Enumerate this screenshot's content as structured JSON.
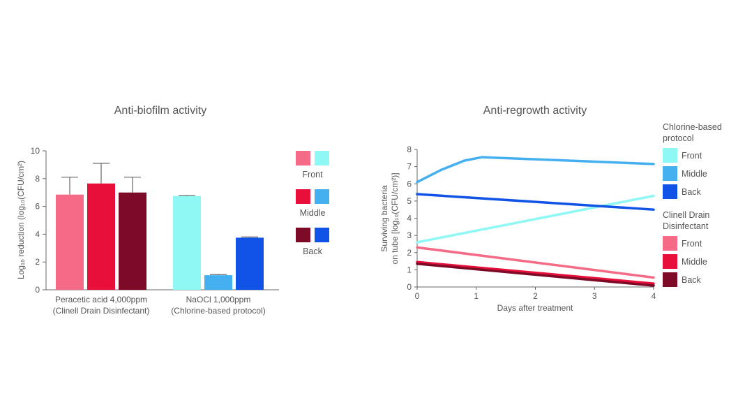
{
  "chart_data": [
    {
      "type": "bar",
      "title": "Anti-biofilm activity",
      "ylabel": "Log₁₀ reduction (log₁₀(CFU/cm²)",
      "ylim": [
        0,
        10
      ],
      "yticks": [
        "0",
        "2",
        "4",
        "6",
        "8",
        "10"
      ],
      "groups": [
        {
          "label1": "Peracetic acid 4,000ppm",
          "label2": "(Clinell Drain Disinfectant)"
        },
        {
          "label1": "NaOCl 1,000ppm",
          "label2": "(Chlorine-based protocol)"
        }
      ],
      "series": [
        {
          "name": "Front",
          "values": [
            6.85,
            6.75
          ],
          "errors": [
            1.25,
            0.05
          ],
          "colors": [
            "#f56b87",
            "#8ff8f4"
          ]
        },
        {
          "name": "Middle",
          "values": [
            7.65,
            1.05
          ],
          "errors": [
            1.45,
            0.05
          ],
          "colors": [
            "#e8103a",
            "#44b0f0"
          ]
        },
        {
          "name": "Back",
          "values": [
            7.0,
            3.75
          ],
          "errors": [
            1.1,
            0.05
          ],
          "colors": [
            "#7d0a27",
            "#1053e6"
          ]
        }
      ],
      "legend": [
        {
          "name": "Front",
          "colors": [
            "#f56b87",
            "#8ff8f4"
          ]
        },
        {
          "name": "Middle",
          "colors": [
            "#e8103a",
            "#44b0f0"
          ]
        },
        {
          "name": "Back",
          "colors": [
            "#7d0a27",
            "#1053e6"
          ]
        }
      ]
    },
    {
      "type": "line",
      "title": "Anti-regrowth activity",
      "xlabel": "Days after treatment",
      "ylabel_line1": "Surviving bacteria",
      "ylabel_line2": "on tube [log₁₀(CFU/cm²)]",
      "xlim": [
        0,
        4
      ],
      "ylim": [
        0,
        8
      ],
      "xticks": [
        "0",
        "1",
        "2",
        "3",
        "4"
      ],
      "yticks": [
        "0",
        "1",
        "2",
        "3",
        "4",
        "5",
        "6",
        "7",
        "8"
      ],
      "series": [
        {
          "name": "Front",
          "group": "Chlorine-based protocol",
          "color": "#8ff8f4",
          "x": [
            0,
            4
          ],
          "y": [
            2.6,
            5.3
          ]
        },
        {
          "name": "Middle",
          "group": "Chlorine-based protocol",
          "color": "#44b0f0",
          "x": [
            0,
            0.4,
            0.8,
            1.1,
            4
          ],
          "y": [
            6.1,
            6.8,
            7.35,
            7.55,
            7.15
          ]
        },
        {
          "name": "Back",
          "group": "Chlorine-based protocol",
          "color": "#1053e6",
          "x": [
            0,
            4
          ],
          "y": [
            5.4,
            4.5
          ]
        },
        {
          "name": "Front",
          "group": "Clinell Drain Disinfectant",
          "color": "#f56b87",
          "x": [
            0,
            4
          ],
          "y": [
            2.3,
            0.55
          ]
        },
        {
          "name": "Middle",
          "group": "Clinell Drain Disinfectant",
          "color": "#e8103a",
          "x": [
            0,
            4
          ],
          "y": [
            1.45,
            0.2
          ]
        },
        {
          "name": "Back",
          "group": "Clinell Drain Disinfectant",
          "color": "#7d0a27",
          "x": [
            0,
            4
          ],
          "y": [
            1.35,
            0.08
          ]
        }
      ],
      "legend_groups": [
        {
          "title1": "Chlorine-based",
          "title2": "protocol",
          "items": [
            {
              "name": "Front",
              "color": "#8ff8f4"
            },
            {
              "name": "Middle",
              "color": "#44b0f0"
            },
            {
              "name": "Back",
              "color": "#1053e6"
            }
          ]
        },
        {
          "title1": "Clinell Drain",
          "title2": "Disinfectant",
          "items": [
            {
              "name": "Front",
              "color": "#f56b87"
            },
            {
              "name": "Middle",
              "color": "#e8103a"
            },
            {
              "name": "Back",
              "color": "#7d0a27"
            }
          ]
        }
      ]
    }
  ]
}
